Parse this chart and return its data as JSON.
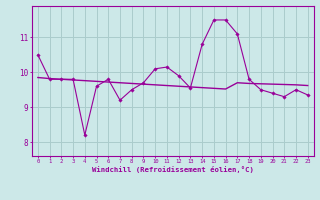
{
  "line1_x": [
    0,
    1,
    2,
    3,
    4,
    5,
    6,
    7,
    8,
    9,
    10,
    11,
    12,
    13,
    14,
    15,
    16,
    17,
    18,
    19,
    20,
    21,
    22,
    23
  ],
  "line1_y": [
    10.5,
    9.8,
    9.8,
    9.8,
    8.2,
    9.6,
    9.8,
    9.2,
    9.5,
    9.7,
    10.1,
    10.15,
    9.9,
    9.55,
    10.8,
    11.5,
    11.5,
    11.1,
    9.8,
    9.5,
    9.4,
    9.3,
    9.5,
    9.35
  ],
  "line2_x": [
    0,
    1,
    2,
    3,
    4,
    5,
    6,
    7,
    8,
    9,
    10,
    11,
    12,
    13,
    14,
    15,
    16,
    17,
    18,
    19,
    20,
    21,
    22,
    23
  ],
  "line2_y": [
    9.85,
    9.82,
    9.8,
    9.78,
    9.76,
    9.74,
    9.72,
    9.7,
    9.68,
    9.66,
    9.64,
    9.62,
    9.6,
    9.58,
    9.56,
    9.54,
    9.52,
    9.7,
    9.68,
    9.67,
    9.66,
    9.65,
    9.64,
    9.62
  ],
  "line_color": "#990099",
  "bg_color": "#cce8e8",
  "grid_color": "#aacccc",
  "xlabel": "Windchill (Refroidissement éolien,°C)",
  "yticks": [
    8,
    9,
    10,
    11
  ],
  "xticks": [
    0,
    1,
    2,
    3,
    4,
    5,
    6,
    7,
    8,
    9,
    10,
    11,
    12,
    13,
    14,
    15,
    16,
    17,
    18,
    19,
    20,
    21,
    22,
    23
  ],
  "ylim": [
    7.6,
    11.9
  ],
  "xlim": [
    -0.5,
    23.5
  ]
}
